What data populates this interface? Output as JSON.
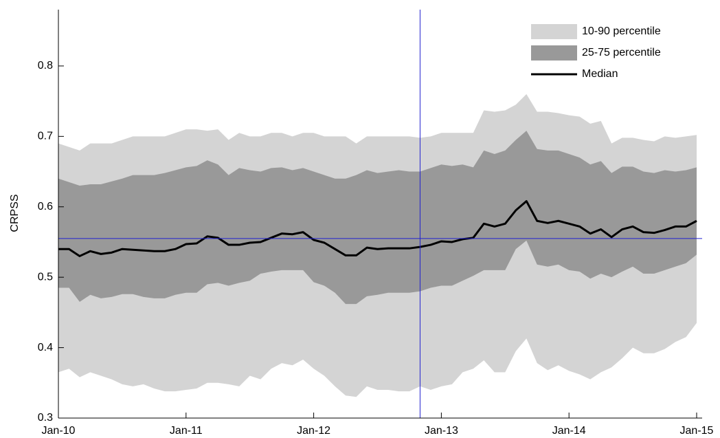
{
  "chart_data": {
    "type": "band",
    "y_label": "CRPSS",
    "x": [
      "2010-01",
      "2010-02",
      "2010-03",
      "2010-04",
      "2010-05",
      "2010-06",
      "2010-07",
      "2010-08",
      "2010-09",
      "2010-10",
      "2010-11",
      "2010-12",
      "2011-01",
      "2011-02",
      "2011-03",
      "2011-04",
      "2011-05",
      "2011-06",
      "2011-07",
      "2011-08",
      "2011-09",
      "2011-10",
      "2011-11",
      "2011-12",
      "2012-01",
      "2012-02",
      "2012-03",
      "2012-04",
      "2012-05",
      "2012-06",
      "2012-07",
      "2012-08",
      "2012-09",
      "2012-10",
      "2012-11",
      "2012-12",
      "2013-01",
      "2013-02",
      "2013-03",
      "2013-04",
      "2013-05",
      "2013-06",
      "2013-07",
      "2013-08",
      "2013-09",
      "2013-10",
      "2013-11",
      "2013-12",
      "2014-01",
      "2014-02",
      "2014-03",
      "2014-04",
      "2014-05",
      "2014-06",
      "2014-07",
      "2014-08",
      "2014-09",
      "2014-10",
      "2014-11",
      "2014-12",
      "2015-01"
    ],
    "series": [
      {
        "name": "10-90 percentile",
        "color": "#d4d4d4",
        "lower": [
          0.365,
          0.37,
          0.358,
          0.365,
          0.36,
          0.355,
          0.348,
          0.345,
          0.348,
          0.342,
          0.338,
          0.338,
          0.34,
          0.342,
          0.35,
          0.35,
          0.348,
          0.345,
          0.36,
          0.355,
          0.37,
          0.378,
          0.375,
          0.383,
          0.37,
          0.36,
          0.345,
          0.332,
          0.33,
          0.345,
          0.34,
          0.34,
          0.338,
          0.338,
          0.345,
          0.34,
          0.345,
          0.348,
          0.365,
          0.37,
          0.382,
          0.365,
          0.365,
          0.395,
          0.413,
          0.378,
          0.368,
          0.375,
          0.367,
          0.362,
          0.355,
          0.365,
          0.372,
          0.385,
          0.4,
          0.392,
          0.392,
          0.398,
          0.408,
          0.415,
          0.435
        ],
        "upper": [
          0.69,
          0.685,
          0.68,
          0.69,
          0.69,
          0.69,
          0.695,
          0.7,
          0.7,
          0.7,
          0.7,
          0.705,
          0.71,
          0.71,
          0.708,
          0.71,
          0.695,
          0.705,
          0.7,
          0.7,
          0.705,
          0.705,
          0.7,
          0.705,
          0.705,
          0.7,
          0.7,
          0.7,
          0.69,
          0.7,
          0.7,
          0.7,
          0.7,
          0.7,
          0.698,
          0.7,
          0.705,
          0.705,
          0.705,
          0.705,
          0.737,
          0.735,
          0.737,
          0.745,
          0.76,
          0.735,
          0.735,
          0.733,
          0.73,
          0.728,
          0.718,
          0.722,
          0.69,
          0.698,
          0.698,
          0.695,
          0.693,
          0.7,
          0.698,
          0.7,
          0.702
        ]
      },
      {
        "name": "25-75 percentile",
        "color": "#999999",
        "lower": [
          0.485,
          0.485,
          0.465,
          0.475,
          0.47,
          0.472,
          0.476,
          0.476,
          0.472,
          0.47,
          0.47,
          0.475,
          0.478,
          0.478,
          0.49,
          0.492,
          0.488,
          0.492,
          0.495,
          0.505,
          0.508,
          0.51,
          0.51,
          0.51,
          0.493,
          0.488,
          0.478,
          0.462,
          0.462,
          0.473,
          0.475,
          0.478,
          0.478,
          0.478,
          0.48,
          0.485,
          0.488,
          0.488,
          0.495,
          0.502,
          0.51,
          0.51,
          0.51,
          0.54,
          0.552,
          0.518,
          0.515,
          0.518,
          0.51,
          0.508,
          0.498,
          0.505,
          0.5,
          0.508,
          0.515,
          0.505,
          0.505,
          0.51,
          0.515,
          0.52,
          0.532
        ],
        "upper": [
          0.64,
          0.635,
          0.63,
          0.632,
          0.632,
          0.636,
          0.64,
          0.645,
          0.645,
          0.645,
          0.648,
          0.652,
          0.656,
          0.658,
          0.666,
          0.66,
          0.645,
          0.655,
          0.652,
          0.65,
          0.655,
          0.656,
          0.652,
          0.655,
          0.65,
          0.645,
          0.64,
          0.64,
          0.645,
          0.652,
          0.648,
          0.65,
          0.652,
          0.65,
          0.65,
          0.655,
          0.66,
          0.658,
          0.66,
          0.656,
          0.68,
          0.675,
          0.68,
          0.695,
          0.708,
          0.682,
          0.68,
          0.68,
          0.675,
          0.67,
          0.66,
          0.665,
          0.648,
          0.657,
          0.657,
          0.65,
          0.648,
          0.652,
          0.65,
          0.652,
          0.656
        ]
      },
      {
        "name": "Median",
        "color": "#000000",
        "values": [
          0.54,
          0.54,
          0.53,
          0.537,
          0.533,
          0.535,
          0.54,
          0.539,
          0.538,
          0.537,
          0.537,
          0.54,
          0.547,
          0.548,
          0.558,
          0.556,
          0.546,
          0.546,
          0.549,
          0.55,
          0.556,
          0.562,
          0.561,
          0.564,
          0.553,
          0.549,
          0.54,
          0.531,
          0.531,
          0.542,
          0.54,
          0.541,
          0.541,
          0.541,
          0.543,
          0.546,
          0.551,
          0.55,
          0.554,
          0.556,
          0.576,
          0.572,
          0.576,
          0.595,
          0.608,
          0.58,
          0.577,
          0.58,
          0.576,
          0.572,
          0.562,
          0.568,
          0.557,
          0.568,
          0.572,
          0.564,
          0.563,
          0.567,
          0.572,
          0.572,
          0.58
        ]
      }
    ],
    "reference_lines": {
      "x": "2012-11",
      "y": 0.555,
      "color": "#2020d0"
    },
    "xlim": [
      "2010-01",
      "2015-01"
    ],
    "xticks": [
      {
        "value": "2010-01",
        "label": "Jan-10"
      },
      {
        "value": "2011-01",
        "label": "Jan-11"
      },
      {
        "value": "2012-01",
        "label": "Jan-12"
      },
      {
        "value": "2013-01",
        "label": "Jan-13"
      },
      {
        "value": "2014-01",
        "label": "Jan-14"
      },
      {
        "value": "2015-01",
        "label": "Jan-15"
      }
    ],
    "ylim": [
      0.3,
      0.88
    ],
    "yticks": [
      0.3,
      0.4,
      0.5,
      0.6,
      0.7,
      0.8
    ],
    "legend": "top-right"
  }
}
